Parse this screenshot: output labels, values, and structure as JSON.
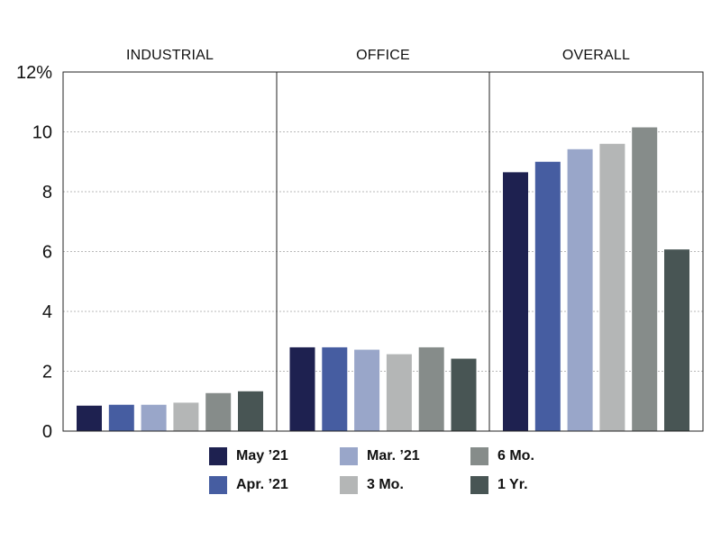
{
  "chart_data": {
    "type": "bar",
    "panels": [
      "INDUSTRIAL",
      "OFFICE",
      "OVERALL"
    ],
    "series": [
      {
        "name": "May ’21",
        "values": [
          0.85,
          2.8,
          8.65
        ],
        "color": "#1e2150"
      },
      {
        "name": "Apr. ’21",
        "values": [
          0.88,
          2.8,
          9.0
        ],
        "color": "#465da1"
      },
      {
        "name": "Mar. ’21",
        "values": [
          0.88,
          2.72,
          9.42
        ],
        "color": "#99a6c9"
      },
      {
        "name": "3 Mo.",
        "values": [
          0.95,
          2.57,
          9.6
        ],
        "color": "#b4b6b6"
      },
      {
        "name": "6 Mo.",
        "values": [
          1.27,
          2.8,
          10.15
        ],
        "color": "#868c8a"
      },
      {
        "name": "1 Yr.",
        "values": [
          1.33,
          2.42,
          6.07
        ],
        "color": "#485554"
      }
    ],
    "y_ticks": [
      {
        "value": 0,
        "label": "0"
      },
      {
        "value": 2,
        "label": "2"
      },
      {
        "value": 4,
        "label": "4"
      },
      {
        "value": 6,
        "label": "6"
      },
      {
        "value": 8,
        "label": "8"
      },
      {
        "value": 10,
        "label": "10"
      },
      {
        "value": 12,
        "label": "12%"
      }
    ],
    "ylim": [
      0,
      12
    ],
    "grid": true,
    "legend_position": "bottom"
  },
  "legend": {
    "items": [
      {
        "label": "May ’21",
        "color": "#1e2150"
      },
      {
        "label": "Apr. ’21",
        "color": "#465da1"
      },
      {
        "label": "Mar. ’21",
        "color": "#99a6c9"
      },
      {
        "label": "3 Mo.",
        "color": "#b4b6b6"
      },
      {
        "label": "6 Mo.",
        "color": "#868c8a"
      },
      {
        "label": "1 Yr.",
        "color": "#485554"
      }
    ]
  }
}
